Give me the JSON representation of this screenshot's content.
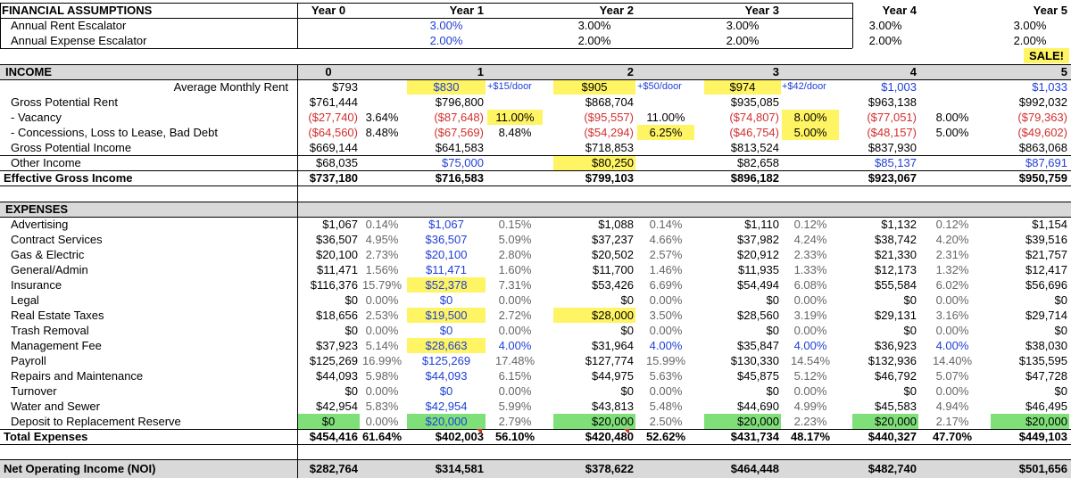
{
  "assumptions": {
    "title": "FINANCIAL ASSUMPTIONS",
    "years": [
      "Year 0",
      "Year 1",
      "Year 2",
      "Year 3",
      "Year 4",
      "Year 5"
    ],
    "rent_label": "Annual Rent Escalator",
    "rent": [
      "",
      "3.00%",
      "3.00%",
      "3.00%",
      "3.00%",
      "3.00%"
    ],
    "expense_label": "Annual Expense Escalator",
    "expense": [
      "",
      "2.00%",
      "2.00%",
      "2.00%",
      "2.00%",
      "2.00%"
    ],
    "sale_label": "SALE!"
  },
  "income": {
    "title": "INCOME",
    "years": [
      "0",
      "1",
      "2",
      "3",
      "4",
      "5"
    ],
    "rows": [
      {
        "label": "Average Monthly Rent",
        "values": [
          "$793",
          "$830",
          "$905",
          "$974",
          "$1,003",
          "$1,033"
        ],
        "pct": [
          "",
          "+$15/door",
          "+$50/door",
          "+$42/door",
          "",
          ""
        ]
      },
      {
        "label": "Gross Potential Rent",
        "values": [
          "$761,444",
          "$796,800",
          "$868,704",
          "$935,085",
          "$963,138",
          "$992,032"
        ],
        "pct": [
          "",
          "",
          "",
          "",
          "",
          ""
        ]
      },
      {
        "label": " - Vacancy",
        "values": [
          "($27,740)",
          "($87,648)",
          "($95,557)",
          "($74,807)",
          "($77,051)",
          "($79,363)"
        ],
        "pct": [
          "3.64%",
          "11.00%",
          "11.00%",
          "8.00%",
          "8.00%",
          ""
        ]
      },
      {
        "label": " - Concessions, Loss to Lease, Bad Debt",
        "values": [
          "($64,560)",
          "($67,569)",
          "($54,294)",
          "($46,754)",
          "($48,157)",
          "($49,602)"
        ],
        "pct": [
          "8.48%",
          "8.48%",
          "6.25%",
          "5.00%",
          "5.00%",
          ""
        ]
      },
      {
        "label": "Gross Potential Income",
        "values": [
          "$669,144",
          "$641,583",
          "$718,853",
          "$813,524",
          "$837,930",
          "$863,068"
        ],
        "pct": [
          "",
          "",
          "",
          "",
          "",
          ""
        ]
      },
      {
        "label": "Other Income",
        "values": [
          "$68,035",
          "$75,000",
          "$80,250",
          "$82,658",
          "$85,137",
          "$87,691"
        ],
        "pct": [
          "",
          "",
          "",
          "",
          "",
          ""
        ]
      },
      {
        "label": "Effective Gross Income",
        "values": [
          "$737,180",
          "$716,583",
          "$799,103",
          "$896,182",
          "$923,067",
          "$950,759"
        ],
        "pct": [
          "",
          "",
          "",
          "",
          "",
          ""
        ]
      }
    ]
  },
  "expenses": {
    "title": "EXPENSES",
    "rows": [
      {
        "label": "Advertising",
        "values": [
          "$1,067",
          "$1,067",
          "$1,088",
          "$1,110",
          "$1,132",
          "$1,154"
        ],
        "pct": [
          "0.14%",
          "0.15%",
          "0.14%",
          "0.12%",
          "0.12%",
          ""
        ]
      },
      {
        "label": "Contract Services",
        "values": [
          "$36,507",
          "$36,507",
          "$37,237",
          "$37,982",
          "$38,742",
          "$39,516"
        ],
        "pct": [
          "4.95%",
          "5.09%",
          "4.66%",
          "4.24%",
          "4.20%",
          ""
        ]
      },
      {
        "label": "Gas & Electric",
        "values": [
          "$20,100",
          "$20,100",
          "$20,502",
          "$20,912",
          "$21,330",
          "$21,757"
        ],
        "pct": [
          "2.73%",
          "2.80%",
          "2.57%",
          "2.33%",
          "2.31%",
          ""
        ]
      },
      {
        "label": "General/Admin",
        "values": [
          "$11,471",
          "$11,471",
          "$11,700",
          "$11,935",
          "$12,173",
          "$12,417"
        ],
        "pct": [
          "1.56%",
          "1.60%",
          "1.46%",
          "1.33%",
          "1.32%",
          ""
        ]
      },
      {
        "label": "Insurance",
        "values": [
          "$116,376",
          "$52,378",
          "$53,426",
          "$54,494",
          "$55,584",
          "$56,696"
        ],
        "pct": [
          "15.79%",
          "7.31%",
          "6.69%",
          "6.08%",
          "6.02%",
          ""
        ]
      },
      {
        "label": "Legal",
        "values": [
          "$0",
          "$0",
          "$0",
          "$0",
          "$0",
          "$0"
        ],
        "pct": [
          "0.00%",
          "0.00%",
          "0.00%",
          "0.00%",
          "0.00%",
          ""
        ]
      },
      {
        "label": "Real Estate Taxes",
        "values": [
          "$18,656",
          "$19,500",
          "$28,000",
          "$28,560",
          "$29,131",
          "$29,714"
        ],
        "pct": [
          "2.53%",
          "2.72%",
          "3.50%",
          "3.19%",
          "3.16%",
          ""
        ]
      },
      {
        "label": "Trash Removal",
        "values": [
          "$0",
          "$0",
          "$0",
          "$0",
          "$0",
          "$0"
        ],
        "pct": [
          "0.00%",
          "0.00%",
          "0.00%",
          "0.00%",
          "0.00%",
          ""
        ]
      },
      {
        "label": "Management Fee",
        "values": [
          "$37,923",
          "$28,663",
          "$31,964",
          "$35,847",
          "$36,923",
          "$38,030"
        ],
        "pct": [
          "5.14%",
          "4.00%",
          "4.00%",
          "4.00%",
          "4.00%",
          ""
        ]
      },
      {
        "label": "Payroll",
        "values": [
          "$125,269",
          "$125,269",
          "$127,774",
          "$130,330",
          "$132,936",
          "$135,595"
        ],
        "pct": [
          "16.99%",
          "17.48%",
          "15.99%",
          "14.54%",
          "14.40%",
          ""
        ]
      },
      {
        "label": "Repairs and Maintenance",
        "values": [
          "$44,093",
          "$44,093",
          "$44,975",
          "$45,875",
          "$46,792",
          "$47,728"
        ],
        "pct": [
          "5.98%",
          "6.15%",
          "5.63%",
          "5.12%",
          "5.07%",
          ""
        ]
      },
      {
        "label": "Turnover",
        "values": [
          "$0",
          "$0",
          "$0",
          "$0",
          "$0",
          "$0"
        ],
        "pct": [
          "0.00%",
          "0.00%",
          "0.00%",
          "0.00%",
          "0.00%",
          ""
        ]
      },
      {
        "label": "Water and Sewer",
        "values": [
          "$42,954",
          "$42,954",
          "$43,813",
          "$44,690",
          "$45,583",
          "$46,495"
        ],
        "pct": [
          "5.83%",
          "5.99%",
          "5.48%",
          "4.99%",
          "4.94%",
          ""
        ]
      },
      {
        "label": "Deposit to Replacement Reserve",
        "values": [
          "$0",
          "$20,000",
          "$20,000",
          "$20,000",
          "$20,000",
          "$20,000"
        ],
        "pct": [
          "0.00%",
          "2.79%",
          "2.50%",
          "2.23%",
          "2.17%",
          ""
        ]
      },
      {
        "label": "Total Expenses",
        "values": [
          "$454,416",
          "$402,003",
          "$420,480",
          "$431,734",
          "$440,327",
          "$449,103"
        ],
        "pct": [
          "61.64%",
          "56.10%",
          "52.62%",
          "48.17%",
          "47.70%",
          ""
        ]
      }
    ]
  },
  "noi": {
    "label": "Net Operating Income (NOI)",
    "values": [
      "$282,764",
      "$314,581",
      "$378,622",
      "$464,448",
      "$482,740",
      "$501,656"
    ]
  },
  "colors": {
    "input_blue": "#1f3fd6",
    "negative_red": "#d32f2f",
    "highlight_yellow": "#fff463",
    "highlight_green": "#7fe07a",
    "header_gray": "#d9d9d9"
  }
}
